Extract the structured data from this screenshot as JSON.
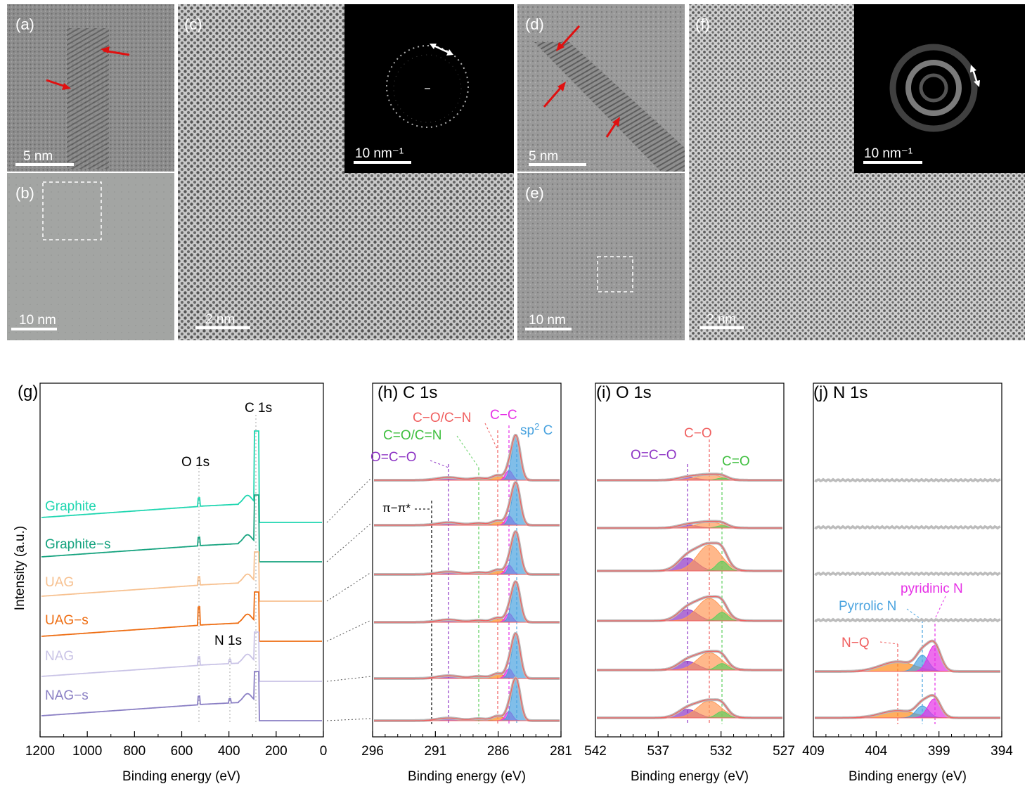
{
  "tem_panels": [
    {
      "id": "a",
      "label": "(a)",
      "scale": "5 nm"
    },
    {
      "id": "b",
      "label": "(b)",
      "scale": "10 nm"
    },
    {
      "id": "c",
      "label": "(c)",
      "scale": "2 nm",
      "inset_scale": "10 nm⁻¹"
    },
    {
      "id": "d",
      "label": "(d)",
      "scale": "5 nm"
    },
    {
      "id": "e",
      "label": "(e)",
      "scale": "10 nm"
    },
    {
      "id": "f",
      "label": "(f)",
      "scale": "2 nm",
      "inset_scale": "10 nm⁻¹"
    }
  ],
  "g": {
    "label": "(g)",
    "ylabel": "Intensity (a.u.)",
    "xlabel": "Binding energy (eV)",
    "xticks": [
      "1200",
      "1000",
      "800",
      "600",
      "400",
      "200",
      "0"
    ],
    "peaks": {
      "c": "C 1s",
      "o": "O 1s",
      "n": "N 1s"
    },
    "samples": [
      {
        "name": "Graphite",
        "color": "#1fd6b0"
      },
      {
        "name": "Graphite−s",
        "color": "#16a37f"
      },
      {
        "name": "UAG",
        "color": "#f7c190"
      },
      {
        "name": "UAG−s",
        "color": "#ee6d12"
      },
      {
        "name": "NAG",
        "color": "#c9c3e6"
      },
      {
        "name": "NAG−s",
        "color": "#8a7fc4"
      }
    ]
  },
  "h": {
    "label": "(h) C 1s",
    "xlabel": "Binding energy (eV)",
    "xticks": [
      "296",
      "291",
      "286",
      "281"
    ],
    "comp": {
      "oco": "O=C−O",
      "coc": "C=O/C=N",
      "con": "C−O/C−N",
      "cc": "C−C",
      "sp2": "sp",
      "pipi": "π−π*"
    }
  },
  "i": {
    "label": "(i) O 1s",
    "xlabel": "Binding energy (eV)",
    "xticks": [
      "542",
      "537",
      "532",
      "527"
    ],
    "comp": {
      "oco": "O=C−O",
      "co": "C−O",
      "cdo": "C=O"
    }
  },
  "j": {
    "label": "(j) N 1s",
    "xlabel": "Binding energy (eV)",
    "xticks": [
      "409",
      "404",
      "399",
      "394"
    ],
    "comp": {
      "pyr": "Pyrrolic N",
      "pyd": "pyridinic N",
      "nq": "N−Q"
    }
  },
  "colors": {
    "oco": "#8e35c5",
    "cdo": "#5fcf5f",
    "co": "#f06060",
    "cc": "#e630e6",
    "sp2": "#4aa3df",
    "nq": "#f06060",
    "pyr": "#4aa3df",
    "pyd": "#e630e6"
  }
}
